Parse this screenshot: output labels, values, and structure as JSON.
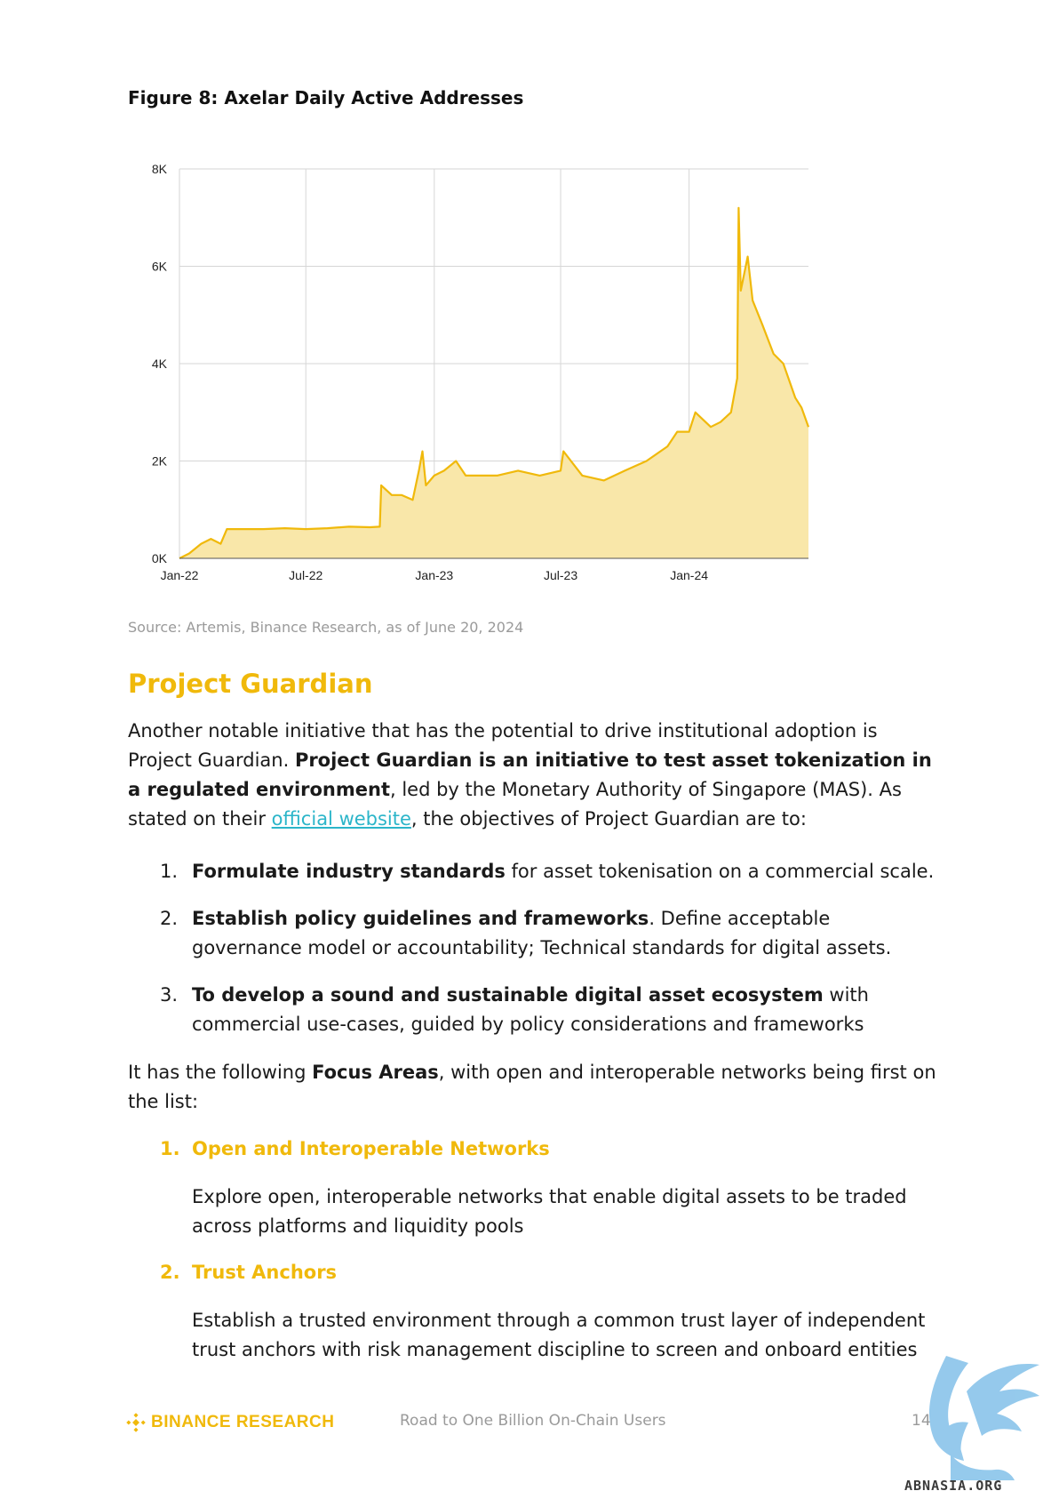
{
  "figure": {
    "title": "Figure 8: Axelar Daily Active Addresses"
  },
  "chart_data": {
    "type": "area",
    "title": "",
    "xlabel": "",
    "ylabel": "",
    "x_ticks": [
      "Jan-22",
      "Jul-22",
      "Jan-23",
      "Jul-23",
      "Jan-24"
    ],
    "y_ticks": [
      "0K",
      "2K",
      "4K",
      "6K",
      "8K"
    ],
    "ylim": [
      0,
      8000
    ],
    "grid": true,
    "series": [
      {
        "x": [
          "2022-01-01",
          "2022-01-15",
          "2022-02-01",
          "2022-02-15",
          "2022-03-01",
          "2022-03-10",
          "2022-04-01",
          "2022-05-01",
          "2022-06-01",
          "2022-07-01",
          "2022-08-01",
          "2022-09-01",
          "2022-10-01",
          "2022-10-15",
          "2022-10-17",
          "2022-11-01",
          "2022-11-15",
          "2022-12-01",
          "2022-12-10",
          "2022-12-15",
          "2022-12-20",
          "2023-01-01",
          "2023-01-15",
          "2023-02-01",
          "2023-02-15",
          "2023-03-01",
          "2023-04-01",
          "2023-05-01",
          "2023-06-01",
          "2023-07-01",
          "2023-07-05",
          "2023-08-01",
          "2023-09-01",
          "2023-10-01",
          "2023-11-01",
          "2023-12-01",
          "2023-12-15",
          "2024-01-01",
          "2024-01-10",
          "2024-02-01",
          "2024-02-15",
          "2024-03-01",
          "2024-03-10",
          "2024-03-12",
          "2024-03-15",
          "2024-03-25",
          "2024-04-01",
          "2024-04-15",
          "2024-05-01",
          "2024-05-15",
          "2024-06-01",
          "2024-06-10",
          "2024-06-20"
        ],
        "values": [
          0,
          100,
          300,
          400,
          300,
          600,
          600,
          600,
          620,
          600,
          620,
          650,
          640,
          650,
          1500,
          1300,
          1300,
          1200,
          1800,
          2200,
          1500,
          1700,
          1800,
          2000,
          1700,
          1700,
          1700,
          1800,
          1700,
          1800,
          2200,
          1700,
          1600,
          1800,
          2000,
          2300,
          2600,
          2600,
          3000,
          2700,
          2800,
          3000,
          3700,
          7200,
          5500,
          6200,
          5300,
          4800,
          4200,
          4000,
          3300,
          3100,
          2700
        ]
      }
    ]
  },
  "source": "Source: Artemis, Binance Research, as of June 20, 2024",
  "section": {
    "heading": "Project Guardian",
    "intro": {
      "t1": "Another notable initiative that has the potential to drive institutional adoption is Project Guardian. ",
      "b1": "Project Guardian is an initiative to test asset tokenization in a regulated environment",
      "t2": ", led by the Monetary Authority of Singapore (MAS). As stated on their ",
      "link": "official website",
      "t3": ", the objectives of Project Guardian are to:"
    },
    "objectives": [
      {
        "num": "1.",
        "bold": "Formulate industry standards",
        "rest": " for asset tokenisation on a commercial scale."
      },
      {
        "num": "2.",
        "bold": "Establish policy guidelines and frameworks",
        "rest": ". Define acceptable governance model or accountability; Technical standards for digital assets."
      },
      {
        "num": "3.",
        "bold": "To develop a sound and sustainable digital asset ecosystem",
        "rest": " with commercial use-cases, guided by policy considerations and frameworks"
      }
    ],
    "focus_intro": {
      "t1": "It has the following ",
      "b1": "Focus Areas",
      "t2": ", with open and interoperable networks being first on the list:"
    },
    "focus_areas": [
      {
        "num": "1.",
        "title": "Open and Interoperable Networks",
        "desc": "Explore open, interoperable networks that enable digital assets to be traded across platforms and liquidity pools"
      },
      {
        "num": "2.",
        "title": "Trust Anchors",
        "desc": "Establish a trusted environment through a common trust layer of independent trust anchors with risk management discipline to screen and onboard entities"
      }
    ]
  },
  "footer": {
    "brand": "BINANCE RESEARCH",
    "center": "Road to One Billion On-Chain Users",
    "page": "14",
    "watermark": "ABNASIA.ORG"
  },
  "colors": {
    "accent": "#F0B90B",
    "link": "#2bb5c9",
    "fill": "#F9E7A9"
  }
}
